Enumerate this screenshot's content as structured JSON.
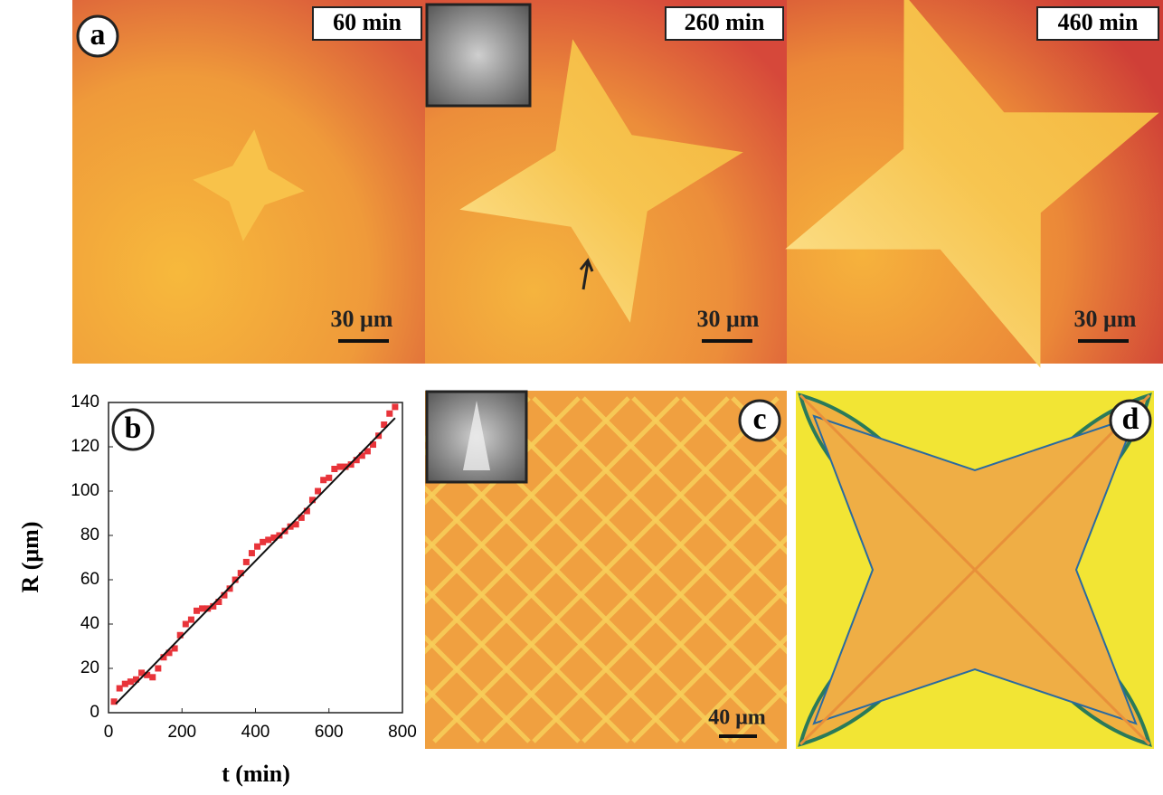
{
  "panel_a": {
    "label": "a",
    "frames": [
      {
        "time": "60 min",
        "scale": "30 μm"
      },
      {
        "time": "260 min",
        "scale": "30 μm"
      },
      {
        "time": "460 min",
        "scale": "30 μm"
      }
    ]
  },
  "panel_c": {
    "label": "c",
    "scale": "40 μm"
  },
  "panel_d": {
    "label": "d"
  },
  "chart_data": {
    "type": "scatter",
    "panel_label": "b",
    "xlabel": "t (min)",
    "ylabel": "R (μm)",
    "x": [
      15,
      30,
      45,
      60,
      75,
      90,
      105,
      120,
      135,
      150,
      165,
      180,
      195,
      210,
      225,
      240,
      255,
      270,
      285,
      300,
      315,
      330,
      345,
      360,
      375,
      390,
      405,
      420,
      435,
      450,
      465,
      480,
      495,
      510,
      525,
      540,
      555,
      570,
      585,
      600,
      615,
      630,
      645,
      660,
      675,
      690,
      705,
      720,
      735,
      750,
      765,
      780
    ],
    "values": [
      5,
      11,
      13,
      14,
      15,
      18,
      17,
      16,
      20,
      25,
      27,
      29,
      35,
      40,
      42,
      46,
      47,
      47,
      48,
      50,
      53,
      56,
      60,
      63,
      68,
      72,
      75,
      77,
      78,
      79,
      80,
      82,
      84,
      85,
      88,
      91,
      96,
      100,
      105,
      106,
      110,
      111,
      111,
      112,
      114,
      116,
      118,
      121,
      125,
      130,
      135,
      138
    ],
    "color": "#e8343a",
    "fit_line": {
      "x": [
        20,
        780
      ],
      "values": [
        4,
        133
      ],
      "color": "#111111"
    },
    "xlim": [
      0,
      800
    ],
    "ylim": [
      0,
      140
    ],
    "xticks": [
      0,
      200,
      400,
      600,
      800
    ],
    "yticks": [
      0,
      20,
      40,
      60,
      80,
      100,
      120,
      140
    ]
  }
}
